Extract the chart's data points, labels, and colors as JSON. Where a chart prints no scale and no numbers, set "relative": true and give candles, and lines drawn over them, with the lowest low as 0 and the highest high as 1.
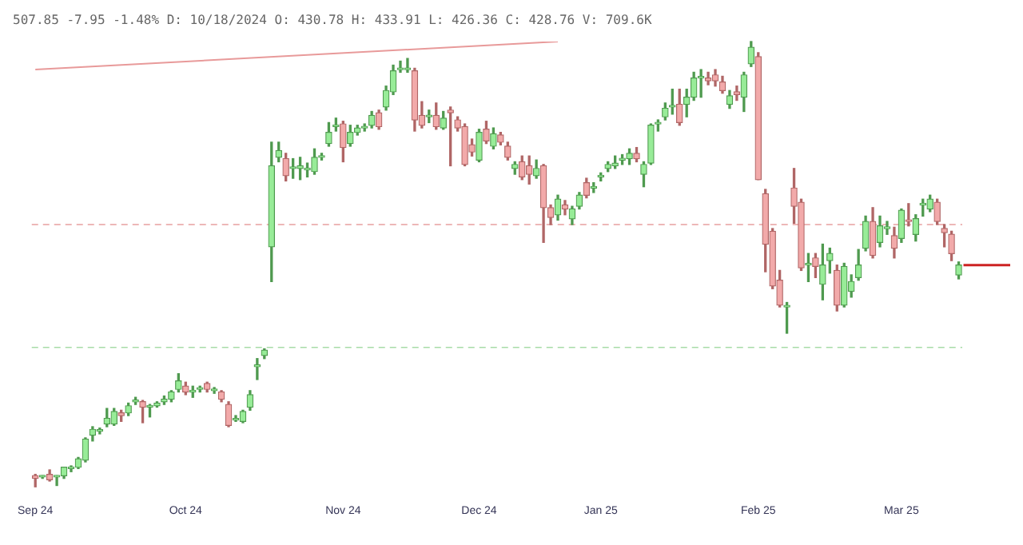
{
  "chart_data": {
    "type": "candlestick",
    "relative": true,
    "title": "507.85 -7.95 -1.48% D: 10/18/2024 O: 430.78 H: 433.91 L: 426.36 C: 428.76 V: 709.6K",
    "categories": [
      "Sep 24",
      null,
      null,
      null,
      null,
      null,
      null,
      null,
      null,
      null,
      null,
      null,
      null,
      null,
      null,
      null,
      null,
      null,
      null,
      null,
      null,
      "Oct 24",
      null,
      null,
      null,
      null,
      null,
      null,
      null,
      null,
      null,
      null,
      null,
      null,
      null,
      null,
      null,
      null,
      null,
      null,
      null,
      null,
      null,
      "Nov 24",
      null,
      null,
      null,
      null,
      null,
      null,
      null,
      null,
      null,
      null,
      null,
      null,
      null,
      null,
      null,
      null,
      null,
      null,
      "Dec 24",
      null,
      null,
      null,
      null,
      null,
      null,
      null,
      null,
      null,
      null,
      null,
      null,
      null,
      null,
      null,
      null,
      "Jan 25",
      null,
      null,
      null,
      null,
      null,
      null,
      null,
      null,
      null,
      null,
      null,
      null,
      null,
      null,
      null,
      null,
      null,
      null,
      null,
      null,
      null,
      "Feb 25",
      null,
      null,
      null,
      null,
      null,
      null,
      null,
      null,
      null,
      null,
      null,
      null,
      null,
      null,
      null,
      null,
      null,
      null,
      null,
      "Mar 25",
      null,
      null,
      null,
      null,
      null,
      null,
      null,
      null
    ],
    "ohlc": [
      [
        0.025,
        0.028,
        0,
        0.019
      ],
      [
        0.022,
        0.025,
        0.019,
        0.022
      ],
      [
        0.028,
        0.038,
        0.013,
        0.016
      ],
      [
        0.022,
        0.025,
        0.003,
        0.022
      ],
      [
        0.025,
        0.044,
        0.019,
        0.044
      ],
      [
        0.041,
        0.047,
        0.034,
        0.041
      ],
      [
        0.044,
        0.066,
        0.041,
        0.063
      ],
      [
        0.06,
        0.11,
        0.056,
        0.107
      ],
      [
        0.116,
        0.135,
        0.103,
        0.129
      ],
      [
        0.125,
        0.132,
        0.119,
        0.125
      ],
      [
        0.141,
        0.176,
        0.135,
        0.154
      ],
      [
        0.141,
        0.176,
        0.138,
        0.169
      ],
      [
        0.166,
        0.172,
        0.147,
        0.16
      ],
      [
        0.166,
        0.188,
        0.16,
        0.182
      ],
      [
        0.191,
        0.201,
        0.185,
        0.191
      ],
      [
        0.191,
        0.194,
        0.144,
        0.179
      ],
      [
        0.179,
        0.185,
        0.157,
        0.179
      ],
      [
        0.182,
        0.191,
        0.179,
        0.188
      ],
      [
        0.191,
        0.204,
        0.185,
        0.197
      ],
      [
        0.197,
        0.216,
        0.191,
        0.213
      ],
      [
        0.219,
        0.254,
        0.213,
        0.238
      ],
      [
        0.226,
        0.235,
        0.207,
        0.213
      ],
      [
        0.213,
        0.226,
        0.201,
        0.213
      ],
      [
        0.219,
        0.226,
        0.213,
        0.219
      ],
      [
        0.232,
        0.235,
        0.213,
        0.219
      ],
      [
        0.216,
        0.223,
        0.21,
        0.216
      ],
      [
        0.213,
        0.216,
        0.191,
        0.197
      ],
      [
        0.185,
        0.191,
        0.135,
        0.138
      ],
      [
        0.15,
        0.16,
        0.147,
        0.15
      ],
      [
        0.147,
        0.172,
        0.144,
        0.169
      ],
      [
        0.179,
        0.216,
        0.172,
        0.207
      ],
      [
        0.27,
        0.288,
        0.241,
        0.27
      ],
      [
        0.295,
        0.31,
        0.288,
        0.307
      ],
      [
        0.539,
        0.774,
        0.461,
        0.721
      ],
      [
        0.74,
        0.774,
        0.73,
        0.755
      ],
      [
        0.737,
        0.749,
        0.687,
        0.699
      ],
      [
        0.715,
        0.737,
        0.693,
        0.715
      ],
      [
        0.715,
        0.74,
        0.69,
        0.721
      ],
      [
        0.712,
        0.727,
        0.696,
        0.712
      ],
      [
        0.708,
        0.759,
        0.702,
        0.74
      ],
      [
        0.74,
        0.749,
        0.734,
        0.74
      ],
      [
        0.771,
        0.818,
        0.765,
        0.796
      ],
      [
        0.809,
        0.828,
        0.799,
        0.809
      ],
      [
        0.815,
        0.821,
        0.73,
        0.762
      ],
      [
        0.771,
        0.812,
        0.765,
        0.796
      ],
      [
        0.796,
        0.812,
        0.79,
        0.806
      ],
      [
        0.806,
        0.815,
        0.799,
        0.809
      ],
      [
        0.812,
        0.843,
        0.806,
        0.834
      ],
      [
        0.84,
        0.846,
        0.803,
        0.809
      ],
      [
        0.853,
        0.9,
        0.846,
        0.89
      ],
      [
        0.887,
        0.947,
        0.881,
        0.934
      ],
      [
        0.937,
        0.956,
        0.931,
        0.937
      ],
      [
        0.937,
        0.962,
        0.931,
        0.937
      ],
      [
        0.934,
        0.94,
        0.799,
        0.824
      ],
      [
        0.834,
        0.865,
        0.806,
        0.812
      ],
      [
        0.831,
        0.846,
        0.818,
        0.831
      ],
      [
        0.834,
        0.862,
        0.803,
        0.809
      ],
      [
        0.806,
        0.843,
        0.803,
        0.828
      ],
      [
        0.846,
        0.853,
        0.721,
        0.84
      ],
      [
        0.824,
        0.831,
        0.799,
        0.806
      ],
      [
        0.809,
        0.815,
        0.721,
        0.724
      ],
      [
        0.768,
        0.781,
        0.743,
        0.752
      ],
      [
        0.734,
        0.803,
        0.73,
        0.796
      ],
      [
        0.803,
        0.821,
        0.771,
        0.777
      ],
      [
        0.765,
        0.806,
        0.759,
        0.793
      ],
      [
        0.79,
        0.796,
        0.768,
        0.774
      ],
      [
        0.765,
        0.774,
        0.734,
        0.74
      ],
      [
        0.715,
        0.73,
        0.702,
        0.724
      ],
      [
        0.73,
        0.743,
        0.69,
        0.696
      ],
      [
        0.721,
        0.743,
        0.68,
        0.702
      ],
      [
        0.699,
        0.734,
        0.693,
        0.715
      ],
      [
        0.721,
        0.724,
        0.549,
        0.627
      ],
      [
        0.627,
        0.633,
        0.589,
        0.605
      ],
      [
        0.611,
        0.655,
        0.599,
        0.646
      ],
      [
        0.633,
        0.643,
        0.611,
        0.624
      ],
      [
        0.602,
        0.63,
        0.589,
        0.624
      ],
      [
        0.63,
        0.661,
        0.624,
        0.655
      ],
      [
        0.683,
        0.693,
        0.649,
        0.655
      ],
      [
        0.671,
        0.683,
        0.661,
        0.671
      ],
      [
        0.696,
        0.705,
        0.687,
        0.696
      ],
      [
        0.715,
        0.73,
        0.708,
        0.724
      ],
      [
        0.721,
        0.743,
        0.715,
        0.727
      ],
      [
        0.734,
        0.746,
        0.724,
        0.734
      ],
      [
        0.737,
        0.759,
        0.724,
        0.749
      ],
      [
        0.749,
        0.762,
        0.73,
        0.737
      ],
      [
        0.702,
        0.73,
        0.674,
        0.724
      ],
      [
        0.727,
        0.815,
        0.724,
        0.812
      ],
      [
        0.815,
        0.824,
        0.799,
        0.815
      ],
      [
        0.831,
        0.862,
        0.824,
        0.85
      ],
      [
        0.853,
        0.893,
        0.837,
        0.853
      ],
      [
        0.859,
        0.893,
        0.812,
        0.818
      ],
      [
        0.859,
        0.893,
        0.831,
        0.875
      ],
      [
        0.875,
        0.931,
        0.868,
        0.918
      ],
      [
        0.918,
        0.937,
        0.875,
        0.918
      ],
      [
        0.918,
        0.931,
        0.903,
        0.912
      ],
      [
        0.925,
        0.937,
        0.9,
        0.912
      ],
      [
        0.909,
        0.922,
        0.884,
        0.89
      ],
      [
        0.859,
        0.89,
        0.85,
        0.878
      ],
      [
        0.887,
        0.9,
        0.868,
        0.881
      ],
      [
        0.875,
        0.931,
        0.843,
        0.925
      ],
      [
        0.95,
        1,
        0.944,
        0.987
      ],
      [
        0.966,
        0.975,
        0.69,
        0.69
      ],
      [
        0.658,
        0.668,
        0.483,
        0.545
      ],
      [
        0.574,
        0.58,
        0.445,
        0.451
      ],
      [
        0.464,
        0.486,
        0.404,
        0.408
      ],
      [
        0.404,
        0.414,
        0.345,
        0.404
      ],
      [
        0.671,
        0.715,
        0.592,
        0.63
      ],
      [
        0.639,
        0.646,
        0.486,
        0.492
      ],
      [
        0.498,
        0.524,
        0.461,
        0.498
      ],
      [
        0.514,
        0.524,
        0.47,
        0.495
      ],
      [
        0.455,
        0.545,
        0.42,
        0.498
      ],
      [
        0.508,
        0.536,
        0.48,
        0.524
      ],
      [
        0.486,
        0.498,
        0.395,
        0.408
      ],
      [
        0.408,
        0.502,
        0.404,
        0.495
      ],
      [
        0.439,
        0.476,
        0.426,
        0.461
      ],
      [
        0.47,
        0.533,
        0.464,
        0.498
      ],
      [
        0.536,
        0.608,
        0.53,
        0.596
      ],
      [
        0.596,
        0.627,
        0.514,
        0.52
      ],
      [
        0.549,
        0.608,
        0.539,
        0.586
      ],
      [
        0.58,
        0.596,
        0.567,
        0.58
      ],
      [
        0.564,
        0.583,
        0.514,
        0.536
      ],
      [
        0.558,
        0.624,
        0.549,
        0.621
      ],
      [
        0.599,
        0.636,
        0.586,
        0.596
      ],
      [
        0.567,
        0.611,
        0.552,
        0.602
      ],
      [
        0.633,
        0.646,
        0.608,
        0.633
      ],
      [
        0.624,
        0.655,
        0.618,
        0.646
      ],
      [
        0.639,
        0.646,
        0.589,
        0.596
      ],
      [
        0.58,
        0.589,
        0.539,
        0.571
      ],
      [
        0.567,
        0.574,
        0.508,
        0.524
      ],
      [
        0.476,
        0.505,
        0.467,
        0.498
      ]
    ],
    "series": [
      {
        "type": "line",
        "color": "#e89a9a",
        "values": [
          0.937,
          null,
          null,
          null,
          null,
          null,
          null,
          null,
          null,
          null,
          null,
          null,
          null,
          null,
          null,
          null,
          null,
          null,
          null,
          null,
          null,
          null,
          null,
          null,
          null,
          null,
          null,
          null,
          null,
          null,
          null,
          null,
          null,
          null,
          null,
          null,
          null,
          null,
          null,
          null,
          null,
          null,
          null,
          null,
          null,
          null,
          null,
          null,
          null,
          null,
          null,
          null,
          null,
          null,
          null,
          null,
          null,
          null,
          null,
          null,
          null,
          null,
          null,
          null,
          null,
          null,
          null,
          null,
          null,
          null,
          null,
          null,
          null,
          1,
          null,
          null,
          null,
          null,
          null,
          null,
          null,
          null,
          null,
          null,
          null,
          null,
          null,
          null,
          null,
          null,
          null,
          null,
          null,
          null,
          null,
          null,
          null,
          null,
          null,
          null,
          null,
          null,
          null,
          null,
          null,
          null,
          null,
          null,
          null,
          null,
          null,
          null,
          null,
          null,
          null,
          null,
          null,
          null,
          null,
          null,
          null,
          null,
          null,
          null,
          null,
          null,
          null,
          null,
          null,
          null
        ]
      }
    ],
    "ref_lines": [
      {
        "axis": "y",
        "value": 0.589,
        "color": "#e8a0a0",
        "line_style": "dashed"
      },
      {
        "axis": "y",
        "value": 0.313,
        "color": "#a8dca8",
        "line_style": "dashed"
      }
    ],
    "grid": false,
    "legend": false
  }
}
